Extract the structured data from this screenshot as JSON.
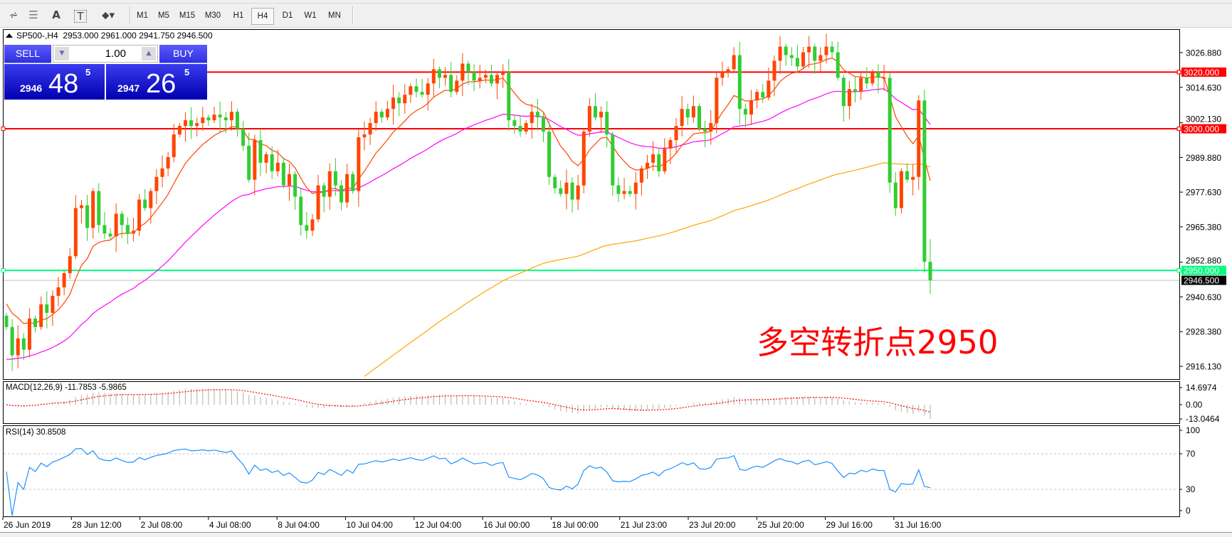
{
  "toolbar": {
    "icons": [
      "elliott-wave-icon",
      "fibonacci-icon",
      "text-icon",
      "text-label-icon",
      "arrows-icon"
    ],
    "timeframes": [
      "M1",
      "M5",
      "M15",
      "M30",
      "H1",
      "H4",
      "D1",
      "W1",
      "MN"
    ],
    "active_timeframe": "H4"
  },
  "header": {
    "symbol": "SP500-,H4",
    "open": "2953.000",
    "high": "2961.000",
    "low": "2941.750",
    "close": "2946.500"
  },
  "trade_panel": {
    "sell_label": "SELL",
    "buy_label": "BUY",
    "lot": "1.00",
    "sell_price_prefix": "2946",
    "sell_price_big": "48",
    "sell_price_sup": "5",
    "buy_price_prefix": "2947",
    "buy_price_big": "26",
    "buy_price_sup": "5"
  },
  "annotation": "多空转折点2950",
  "colors": {
    "up": "#ff4500",
    "down": "#32cd32",
    "level_red": "#ff0000",
    "level_green": "#00ff7f",
    "ma_fast": "#ff4500",
    "ma_mid": "#ff00ff",
    "ma_slow": "#ffa500",
    "rsi": "#1e90ff",
    "macd_signal": "#ff0000",
    "macd_hist": "#c0c0c0"
  },
  "chart_data": [
    {
      "type": "candlestick",
      "ylim": [
        2910,
        3033
      ],
      "price_ticks": [
        "3026.880",
        "3014.630",
        "3002.130",
        "2989.880",
        "2977.630",
        "2965.380",
        "2952.880",
        "2940.630",
        "2928.380",
        "2916.130"
      ],
      "levels": [
        {
          "value": 3020,
          "label": "3020.000",
          "color": "#ff0000"
        },
        {
          "value": 3000,
          "label": "3000.000",
          "color": "#ff0000"
        },
        {
          "value": 2950,
          "label": "2950.000",
          "color": "#00ff7f"
        }
      ],
      "current_price": {
        "value": 2946.5,
        "label": "2946.500"
      },
      "first_open": 2934,
      "closes": [
        2930,
        2920,
        2926,
        2922,
        2933,
        2930,
        2938,
        2935,
        2941,
        2944,
        2949,
        2955,
        2972,
        2973,
        2965,
        2978,
        2966,
        2963,
        2962,
        2970,
        2966,
        2963,
        2964,
        2975,
        2972,
        2978,
        2983,
        2986,
        2990,
        2998,
        3001,
        3003,
        3001,
        3002,
        3004,
        3003,
        3005,
        3004,
        3003,
        3006,
        3000,
        2994,
        2982,
        2996,
        2988,
        2991,
        2985,
        2988,
        2980,
        2984,
        2976,
        2966,
        2964,
        2968,
        2980,
        2976,
        2985,
        2980,
        2974,
        2984,
        2978,
        2997,
        2998,
        3002,
        3006,
        3004,
        3007,
        3011,
        3009,
        3012,
        3015,
        3013,
        3012,
        3016,
        3021,
        3018,
        3019,
        3013,
        3017,
        3023,
        3020,
        3017,
        3018,
        3019,
        3016,
        3019,
        3020,
        3003,
        3001,
        2999,
        3002,
        3006,
        3004,
        2999,
        2983,
        2979,
        2977,
        2981,
        2975,
        2980,
        2999,
        3008,
        3004,
        3006,
        2998,
        2980,
        2977,
        2978,
        2977,
        2981,
        2986,
        2988,
        2991,
        2985,
        2993,
        2996,
        3001,
        3007,
        3004,
        3008,
        3000,
        2999,
        3002,
        3018,
        3020,
        3021,
        3026,
        3007,
        3005,
        3010,
        3013,
        3011,
        3017,
        3024,
        3029,
        3026,
        3025,
        3022,
        3027,
        3029,
        3024,
        3026,
        3029,
        3027,
        3018,
        3008,
        3014,
        3013,
        3018,
        3016,
        3020,
        3018,
        3018,
        2981,
        2972,
        2985,
        2982,
        2983,
        3010,
        2953,
        2946.5
      ],
      "time_labels": [
        "26 Jun 2019",
        "28 Jun 12:00",
        "2 Jul 08:00",
        "4 Jul 08:00",
        "8 Jul 04:00",
        "10 Jul 04:00",
        "12 Jul 04:00",
        "16 Jul 00:00",
        "18 Jul 00:00",
        "21 Jul 23:00",
        "23 Jul 20:00",
        "25 Jul 20:00",
        "29 Jul 16:00",
        "31 Jul 16:00"
      ]
    },
    {
      "type": "histogram+line",
      "label": "MACD(12,26,9) -11.7853 -5.9865",
      "ylim": [
        -13.0464,
        14.6974
      ],
      "ticks": [
        "14.6974",
        "0.00",
        "-13.0464"
      ]
    },
    {
      "type": "line",
      "label": "RSI(14) 30.8508",
      "ylim": [
        0,
        100
      ],
      "ticks": [
        "100",
        "70",
        "30",
        "0"
      ],
      "levels": [
        70,
        30
      ]
    }
  ]
}
